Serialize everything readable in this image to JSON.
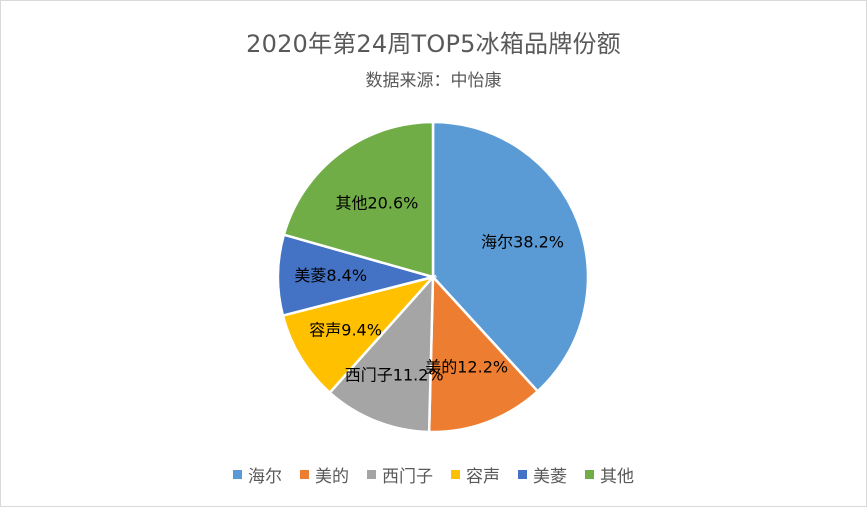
{
  "chart_data": {
    "type": "pie",
    "title": "2020年第24周TOP5冰箱品牌份额",
    "subtitle": "数据来源：中怡康",
    "categories": [
      "海尔",
      "美的",
      "西门子",
      "容声",
      "美菱",
      "其他"
    ],
    "values": [
      38.2,
      12.2,
      11.2,
      9.4,
      8.4,
      20.6
    ],
    "data_labels": [
      "海尔38.2%",
      "美的12.2%",
      "西门子11.2%",
      "容声9.4%",
      "美菱8.4%",
      "其他20.6%"
    ],
    "colors": [
      "#5B9BD5",
      "#ED7D31",
      "#A5A5A5",
      "#FFC000",
      "#4472C4",
      "#70AD47"
    ],
    "legend_position": "bottom",
    "start_angle": "12 o'clock, clockwise"
  }
}
